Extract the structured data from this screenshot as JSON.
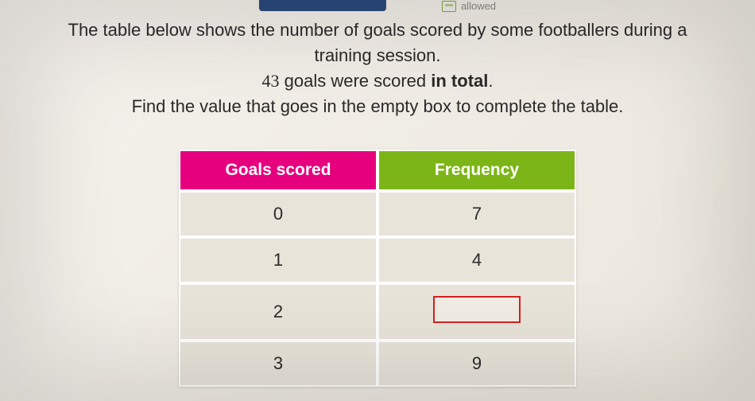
{
  "top": {
    "allowed_label": "allowed"
  },
  "question": {
    "line1": "The table below shows the number of goals scored by some footballers during a",
    "line2": "training session.",
    "total_num": "43",
    "total_rest": " goals were scored ",
    "total_bold": "in total",
    "line4": "Find the value that goes in the empty box to complete the table."
  },
  "table": {
    "header_goals": "Goals scored",
    "header_freq": "Frequency",
    "header_goals_color": "#e6007e",
    "header_freq_color": "#7cb518",
    "rows": [
      {
        "goals": "0",
        "freq": "7"
      },
      {
        "goals": "1",
        "freq": "4"
      },
      {
        "goals": "2",
        "freq": ""
      },
      {
        "goals": "3",
        "freq": "9"
      }
    ],
    "empty_row_index": 2,
    "cell_bg": "#e8e4da",
    "empty_border": "#d62020"
  }
}
